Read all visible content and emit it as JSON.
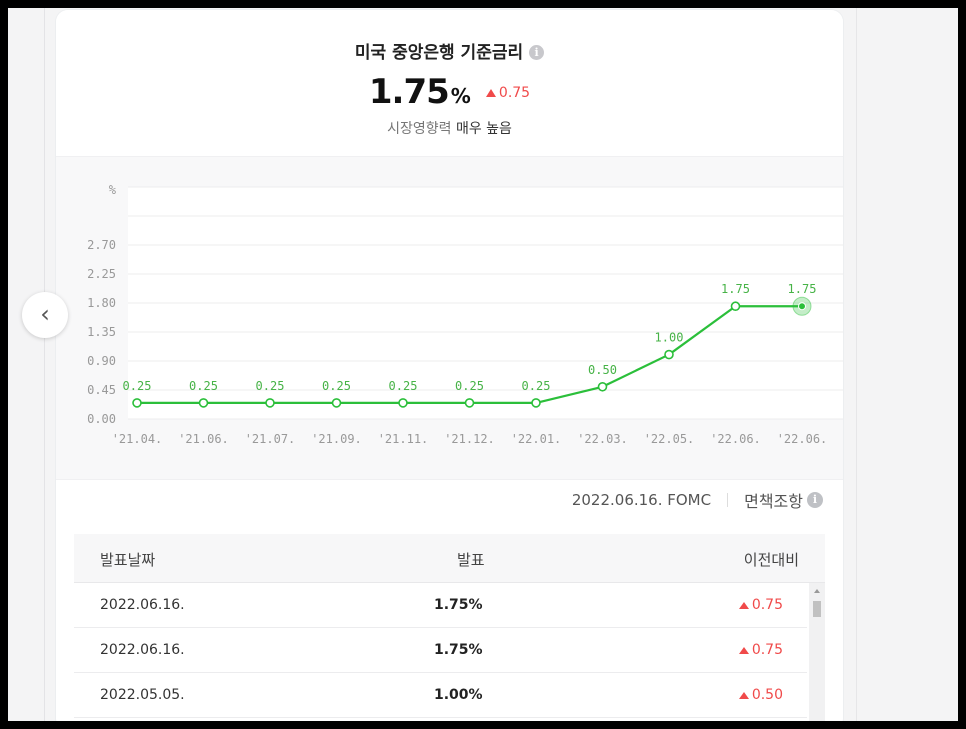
{
  "header": {
    "title": "미국 중앙은행 기준금리",
    "value": "1.75",
    "unit": "%",
    "change": "0.75",
    "influence_label": "시장영향력",
    "influence_value": "매우 높음"
  },
  "chart_data": {
    "type": "line",
    "ylabel": "%",
    "y_ticks": [
      "0.00",
      "0.45",
      "0.90",
      "1.35",
      "1.80",
      "2.25",
      "2.70"
    ],
    "ylim": [
      0,
      3.6
    ],
    "categories": [
      "'21.04.",
      "'21.06.",
      "'21.07.",
      "'21.09.",
      "'21.11.",
      "'21.12.",
      "'22.01.",
      "'22.03.",
      "'22.05.",
      "'22.06.",
      "'22.06."
    ],
    "values": [
      0.25,
      0.25,
      0.25,
      0.25,
      0.25,
      0.25,
      0.25,
      0.5,
      1.0,
      1.75,
      1.75
    ],
    "value_labels": [
      "0.25",
      "0.25",
      "0.25",
      "0.25",
      "0.25",
      "0.25",
      "0.25",
      "0.50",
      "1.00",
      "1.75",
      "1.75"
    ],
    "colors": {
      "line": "#2bbf3a",
      "label": "#47b347",
      "grid": "#ececee",
      "axis_text": "#999999"
    },
    "grid": true,
    "highlight_last": true
  },
  "nav": {
    "prev_icon": "chevron-left-icon",
    "prev_symbol": "‹"
  },
  "meta": {
    "date_event": "2022.06.16. FOMC",
    "disclaimer": "면책조항"
  },
  "table": {
    "headers": {
      "date": "발표날짜",
      "value": "발표",
      "change": "이전대비"
    },
    "rows": [
      {
        "date": "2022.06.16.",
        "value": "1.75%",
        "change": "0.75"
      },
      {
        "date": "2022.06.16.",
        "value": "1.75%",
        "change": "0.75"
      },
      {
        "date": "2022.05.05.",
        "value": "1.00%",
        "change": "0.50"
      }
    ]
  },
  "info_symbol": "i"
}
